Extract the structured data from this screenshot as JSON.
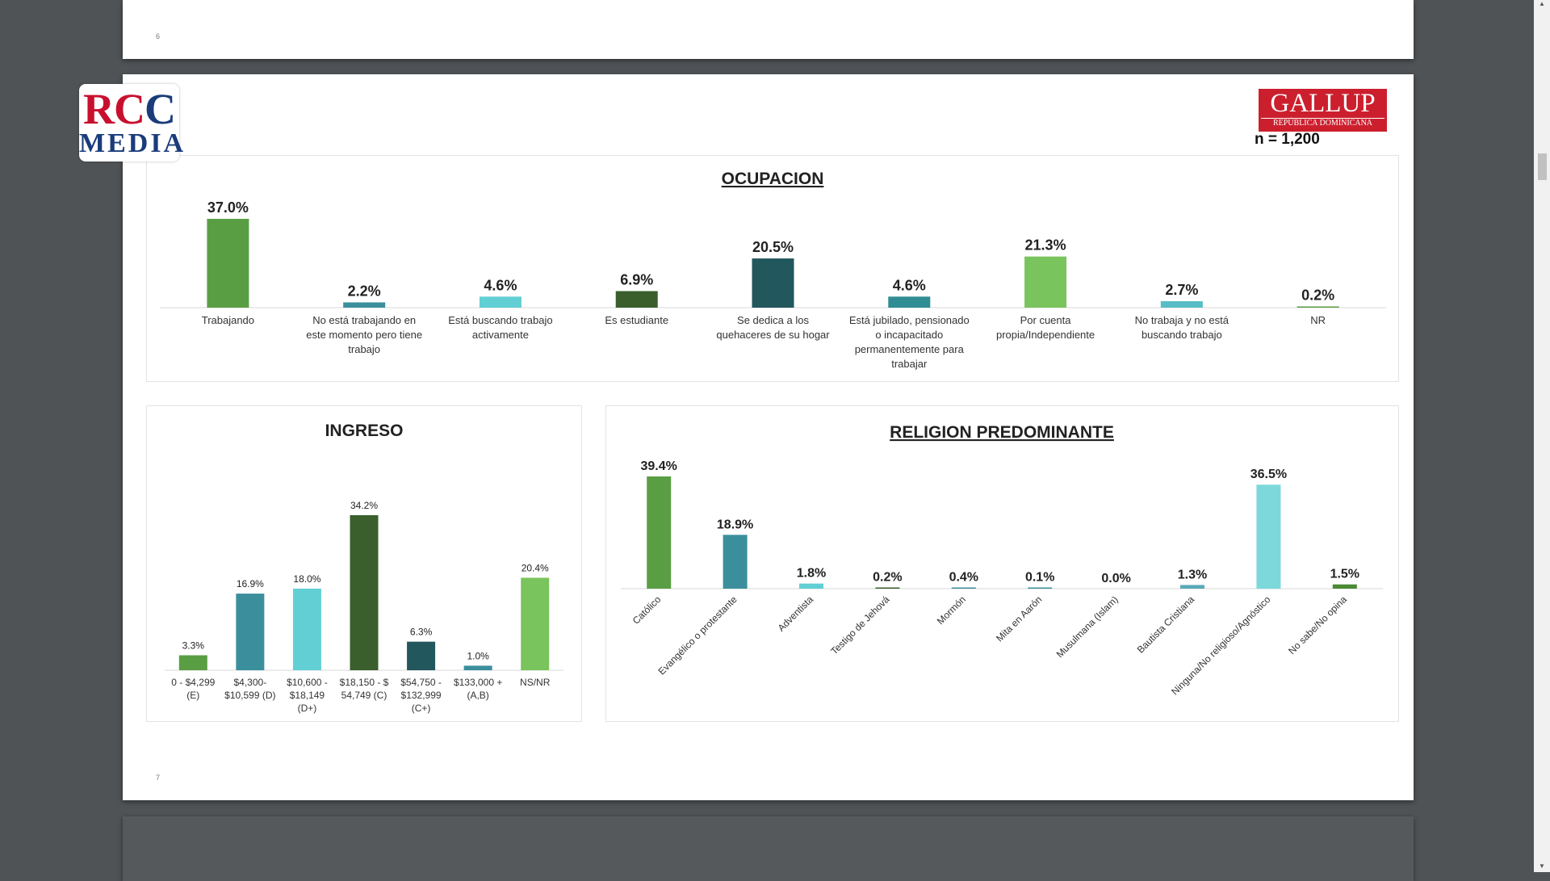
{
  "pages": {
    "prev_number": "6",
    "main_number": "7"
  },
  "logos": {
    "rcc_line1_a": "RC",
    "rcc_line1_b": "C",
    "rcc_line2": "MEDIA",
    "gallup_line1": "GALLUP",
    "gallup_line2": "REPÚBLICA DOMINICANA"
  },
  "sample_label": "n = 1,200",
  "colors": {
    "green": "#5a9e44",
    "teal": "#3b8f9c",
    "light_teal": "#62cfd4",
    "dark_green": "#3a5f2c",
    "dark_teal": "#22575d",
    "light_green": "#79c45c"
  },
  "chart_data": [
    {
      "type": "bar",
      "title": "OCUPACION",
      "categories": [
        "Trabajando",
        "No está trabajando en este momento pero tiene trabajo",
        "Está buscando trabajo activamente",
        "Es estudiante",
        "Se dedica a los quehaceres de su hogar",
        "Está jubilado, pensionado o incapacitado permanentemente para trabajar",
        "Por cuenta propia/Independiente",
        "No trabaja y no está buscando trabajo",
        "NR"
      ],
      "category_lines": [
        [
          "Trabajando"
        ],
        [
          "No está trabajando en",
          "este momento pero tiene",
          "trabajo"
        ],
        [
          "Está buscando trabajo",
          "activamente"
        ],
        [
          "Es estudiante"
        ],
        [
          "Se dedica a los",
          "quehaceres de su hogar"
        ],
        [
          "Está jubilado, pensionado",
          "o incapacitado",
          "permanentemente para",
          "trabajar"
        ],
        [
          "Por cuenta",
          "propia/Independiente"
        ],
        [
          "No trabaja y no está",
          "buscando trabajo"
        ],
        [
          "NR"
        ]
      ],
      "values": [
        37.0,
        2.2,
        4.6,
        6.9,
        20.5,
        4.6,
        21.3,
        2.7,
        0.2
      ],
      "labels": [
        "37.0%",
        "2.2%",
        "4.6%",
        "6.9%",
        "20.5%",
        "4.6%",
        "21.3%",
        "2.7%",
        "0.2%"
      ],
      "colors": [
        "#5a9e44",
        "#3b8f9c",
        "#62cfd4",
        "#3a5f2c",
        "#22575d",
        "#2f8d93",
        "#79c45c",
        "#57bdc6",
        "#5a9e44"
      ]
    },
    {
      "type": "bar",
      "title": "INGRESO",
      "categories": [
        "0 - $4,299 (E)",
        "$4,300- $10,599 (D)",
        "$10,600 - $18,149 (D+)",
        "$18,150 - $ 54,749 (C)",
        "$54,750 - $132,999 (C+)",
        "$133,000 + (A,B)",
        "NS/NR"
      ],
      "category_lines": [
        [
          "0 - $4,299",
          "(E)"
        ],
        [
          "$4,300-",
          "$10,599 (D)"
        ],
        [
          "$10,600 -",
          "$18,149",
          "(D+)"
        ],
        [
          "$18,150 - $",
          "54,749 (C)"
        ],
        [
          "$54,750 -",
          "$132,999",
          "(C+)"
        ],
        [
          "$133,000 +",
          "(A,B)"
        ],
        [
          "NS/NR"
        ]
      ],
      "values": [
        3.3,
        16.9,
        18.0,
        34.2,
        6.3,
        1.0,
        20.4
      ],
      "labels": [
        "3.3%",
        "16.9%",
        "18.0%",
        "34.2%",
        "6.3%",
        "1.0%",
        "20.4%"
      ],
      "colors": [
        "#5a9e44",
        "#3b8f9c",
        "#62cfd4",
        "#3a5f2c",
        "#22575d",
        "#3b8f9c",
        "#79c45c"
      ]
    },
    {
      "type": "bar",
      "title": "RELIGION PREDOMINANTE",
      "categories": [
        "Católico",
        "Evangélico o protestante",
        "Adventista",
        "Testigo de Jehová",
        "Mormón",
        "Mita en Aarón",
        "Musulmana (Islam)",
        "Bautista Cristiana",
        "Ninguna/No religioso/Agnóstico",
        "No sabe/No opina"
      ],
      "values": [
        39.4,
        18.9,
        1.8,
        0.2,
        0.4,
        0.1,
        0.0,
        1.3,
        36.5,
        1.5
      ],
      "labels": [
        "39.4%",
        "18.9%",
        "1.8%",
        "0.2%",
        "0.4%",
        "0.1%",
        "0.0%",
        "1.3%",
        "36.5%",
        "1.5%"
      ],
      "colors": [
        "#5a9e44",
        "#3b8f9c",
        "#62cfd4",
        "#3a5f2c",
        "#3b8f9c",
        "#3b8f9c",
        "#3b8f9c",
        "#5aaab8",
        "#7dd8dc",
        "#4a8a34"
      ]
    }
  ]
}
